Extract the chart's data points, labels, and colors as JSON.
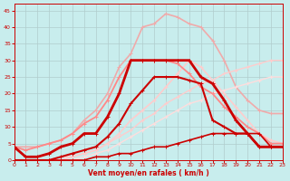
{
  "xlabel": "Vent moyen/en rafales ( km/h )",
  "xlim": [
    0,
    23
  ],
  "ylim": [
    0,
    47
  ],
  "yticks": [
    0,
    5,
    10,
    15,
    20,
    25,
    30,
    35,
    40,
    45
  ],
  "xticks": [
    0,
    1,
    2,
    3,
    4,
    5,
    6,
    7,
    8,
    9,
    10,
    11,
    12,
    13,
    14,
    15,
    16,
    17,
    18,
    19,
    20,
    21,
    22,
    23
  ],
  "background_color": "#c8eded",
  "grid_color": "#b0cccc",
  "lines": [
    {
      "x": [
        0,
        1,
        2,
        3,
        4,
        5,
        6,
        7,
        8,
        9,
        10,
        11,
        12,
        13,
        14,
        15,
        16,
        17,
        18,
        19,
        20,
        21,
        22,
        23
      ],
      "y": [
        4,
        4,
        4,
        5,
        6,
        8,
        12,
        15,
        20,
        28,
        32,
        40,
        41,
        44,
        43,
        41,
        40,
        36,
        30,
        22,
        18,
        15,
        14,
        14
      ],
      "color": "#f0aaaa",
      "lw": 1.2,
      "marker": "+"
    },
    {
      "x": [
        0,
        1,
        2,
        3,
        4,
        5,
        6,
        7,
        8,
        9,
        10,
        11,
        12,
        13,
        14,
        15,
        16,
        17,
        18,
        19,
        20,
        21,
        22,
        23
      ],
      "y": [
        0,
        0,
        0,
        0,
        1,
        1,
        2,
        3,
        5,
        8,
        12,
        15,
        18,
        22,
        26,
        30,
        28,
        24,
        20,
        16,
        12,
        8,
        6,
        5
      ],
      "color": "#ffcccc",
      "lw": 1.2,
      "marker": "+"
    },
    {
      "x": [
        0,
        1,
        2,
        3,
        4,
        5,
        6,
        7,
        8,
        9,
        10,
        11,
        12,
        13,
        14,
        15,
        16,
        17,
        18,
        19,
        20,
        21,
        22,
        23
      ],
      "y": [
        0,
        0,
        0,
        0,
        0,
        1,
        2,
        3,
        5,
        7,
        9,
        12,
        14,
        17,
        19,
        21,
        23,
        24,
        26,
        27,
        28,
        29,
        30,
        30
      ],
      "color": "#ffcccc",
      "lw": 1.0,
      "marker": "+"
    },
    {
      "x": [
        0,
        1,
        2,
        3,
        4,
        5,
        6,
        7,
        8,
        9,
        10,
        11,
        12,
        13,
        14,
        15,
        16,
        17,
        18,
        19,
        20,
        21,
        22,
        23
      ],
      "y": [
        0,
        0,
        0,
        0,
        0,
        0,
        1,
        2,
        3,
        5,
        7,
        9,
        11,
        13,
        15,
        17,
        18,
        20,
        21,
        22,
        23,
        24,
        25,
        25
      ],
      "color": "#ffdddd",
      "lw": 1.0,
      "marker": "+"
    },
    {
      "x": [
        0,
        1,
        2,
        3,
        4,
        5,
        6,
        7,
        8,
        9,
        10,
        11,
        12,
        13,
        14,
        15,
        16,
        17,
        18,
        19,
        20,
        21,
        22,
        23
      ],
      "y": [
        4,
        3,
        4,
        5,
        6,
        8,
        11,
        13,
        18,
        25,
        30,
        30,
        30,
        30,
        29,
        26,
        22,
        20,
        16,
        13,
        10,
        8,
        5,
        5
      ],
      "color": "#ff8888",
      "lw": 1.3,
      "marker": "+"
    },
    {
      "x": [
        0,
        1,
        2,
        3,
        4,
        5,
        6,
        7,
        8,
        9,
        10,
        11,
        12,
        13,
        14,
        15,
        16,
        17,
        18,
        19,
        20,
        21,
        22,
        23
      ],
      "y": [
        4,
        1,
        1,
        2,
        4,
        5,
        8,
        8,
        13,
        20,
        30,
        30,
        30,
        30,
        30,
        30,
        25,
        23,
        18,
        12,
        8,
        4,
        4,
        4
      ],
      "color": "#cc0000",
      "lw": 2.0,
      "marker": "+"
    },
    {
      "x": [
        0,
        1,
        2,
        3,
        4,
        5,
        6,
        7,
        8,
        9,
        10,
        11,
        12,
        13,
        14,
        15,
        16,
        17,
        18,
        19,
        20,
        21,
        22,
        23
      ],
      "y": [
        0,
        0,
        0,
        0,
        1,
        2,
        3,
        4,
        7,
        11,
        17,
        21,
        25,
        25,
        25,
        24,
        23,
        12,
        10,
        8,
        8,
        4,
        4,
        4
      ],
      "color": "#cc0000",
      "lw": 1.5,
      "marker": "+"
    },
    {
      "x": [
        0,
        1,
        2,
        3,
        4,
        5,
        6,
        7,
        8,
        9,
        10,
        11,
        12,
        13,
        14,
        15,
        16,
        17,
        18,
        19,
        20,
        21,
        22,
        23
      ],
      "y": [
        0,
        0,
        0,
        0,
        0,
        0,
        0,
        1,
        1,
        2,
        2,
        3,
        4,
        4,
        5,
        6,
        7,
        8,
        8,
        8,
        8,
        8,
        4,
        4
      ],
      "color": "#cc0000",
      "lw": 1.2,
      "marker": "+"
    }
  ]
}
